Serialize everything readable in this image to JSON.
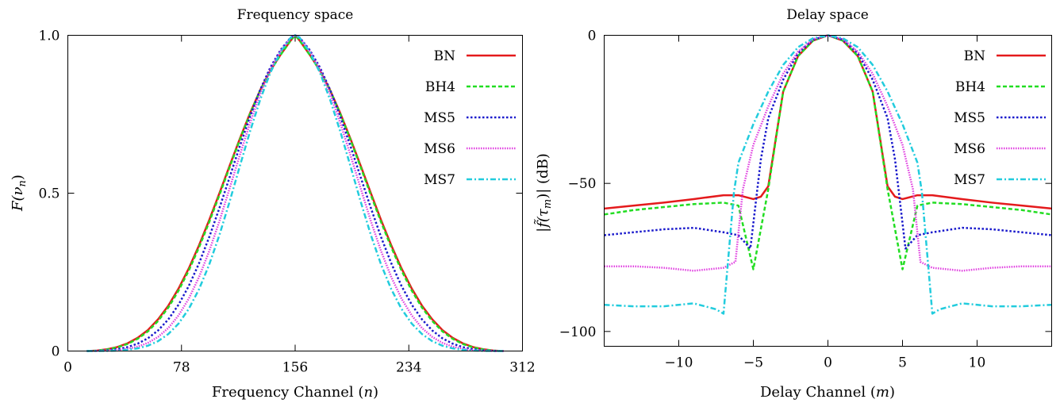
{
  "chart_data": [
    {
      "type": "line",
      "title": "Frequency space",
      "xlabel": "Frequency Channel (",
      "xlabel_var": "n",
      "xlabel_close": ")",
      "ylabel": "F(",
      "ylabel_var": "ν",
      "ylabel_sub": "n",
      "ylabel_close": ")",
      "xlim": [
        0,
        312
      ],
      "ylim": [
        0,
        1
      ],
      "xticks": [
        0,
        78,
        156,
        234,
        312
      ],
      "xtick_labels": [
        "0",
        "78",
        "156",
        "234",
        "312"
      ],
      "yticks": [
        0,
        0.5,
        1
      ],
      "ytick_labels": [
        "0",
        "0.5",
        "1.0"
      ],
      "legend_position": "top-right",
      "grid": false,
      "x": [
        13,
        20,
        27,
        34,
        41,
        48,
        55,
        62,
        69,
        76,
        83,
        90,
        97,
        104,
        111,
        118,
        125,
        132,
        139,
        146,
        153,
        156,
        159,
        166,
        173,
        180,
        187,
        194,
        201,
        208,
        215,
        222,
        229,
        236,
        243,
        250,
        257,
        264,
        271,
        278,
        285,
        292,
        299
      ],
      "series": [
        {
          "name": "BN",
          "color": "#e41a1c",
          "dash": "",
          "values": [
            0.0,
            0.0015,
            0.0057,
            0.0128,
            0.0245,
            0.042,
            0.0667,
            0.1008,
            0.144,
            0.198,
            0.2617,
            0.3346,
            0.4145,
            0.4994,
            0.5864,
            0.672,
            0.753,
            0.8263,
            0.8888,
            0.9385,
            0.9839,
            1.0,
            0.9839,
            0.9385,
            0.8888,
            0.8263,
            0.753,
            0.672,
            0.5864,
            0.4994,
            0.4145,
            0.3346,
            0.2617,
            0.198,
            0.144,
            0.1008,
            0.0667,
            0.042,
            0.0245,
            0.0128,
            0.0057,
            0.0015,
            0.0
          ]
        },
        {
          "name": "BH4",
          "color": "#22dd22",
          "dash": "5,3",
          "values": [
            0.0,
            0.0012,
            0.005,
            0.0115,
            0.0225,
            0.039,
            0.0625,
            0.0955,
            0.138,
            0.1915,
            0.255,
            0.328,
            0.4082,
            0.4938,
            0.5818,
            0.6685,
            0.7505,
            0.8245,
            0.8876,
            0.938,
            0.9837,
            1.0,
            0.9837,
            0.938,
            0.8876,
            0.8245,
            0.7505,
            0.6685,
            0.5818,
            0.4938,
            0.4082,
            0.328,
            0.255,
            0.1915,
            0.138,
            0.0955,
            0.0625,
            0.039,
            0.0225,
            0.0115,
            0.005,
            0.0012,
            0.0
          ]
        },
        {
          "name": "MS5",
          "color": "#1a1acc",
          "dash": "2.5,2.5",
          "values": [
            0.0,
            0.0005,
            0.0023,
            0.006,
            0.0125,
            0.0235,
            0.0405,
            0.0655,
            0.1005,
            0.147,
            0.206,
            0.2775,
            0.3605,
            0.4525,
            0.55,
            0.6485,
            0.7425,
            0.8275,
            0.8985,
            0.9535,
            0.9935,
            1.0,
            0.9935,
            0.9535,
            0.8985,
            0.8275,
            0.7425,
            0.6485,
            0.55,
            0.4525,
            0.3605,
            0.2775,
            0.206,
            0.147,
            0.1005,
            0.0655,
            0.0405,
            0.0235,
            0.0125,
            0.006,
            0.0023,
            0.0005,
            0.0
          ]
        },
        {
          "name": "MS6",
          "color": "#e040e0",
          "dash": "1.5,1.5",
          "values": [
            0.0,
            0.0002,
            0.001,
            0.003,
            0.007,
            0.014,
            0.026,
            0.045,
            0.073,
            0.113,
            0.166,
            0.234,
            0.316,
            0.411,
            0.515,
            0.62,
            0.722,
            0.814,
            0.891,
            0.95,
            0.993,
            1.0,
            0.993,
            0.95,
            0.891,
            0.814,
            0.722,
            0.62,
            0.515,
            0.411,
            0.316,
            0.234,
            0.166,
            0.113,
            0.073,
            0.045,
            0.026,
            0.014,
            0.007,
            0.003,
            0.001,
            0.0002,
            0.0
          ]
        },
        {
          "name": "MS7",
          "color": "#22ccdd",
          "dash": "7,3,2,3",
          "values": [
            0.0,
            0.0001,
            0.0004,
            0.0015,
            0.004,
            0.0085,
            0.017,
            0.0315,
            0.054,
            0.087,
            0.1335,
            0.1955,
            0.2735,
            0.367,
            0.473,
            0.585,
            0.695,
            0.796,
            0.882,
            0.947,
            0.993,
            1.0,
            0.993,
            0.947,
            0.882,
            0.796,
            0.695,
            0.585,
            0.473,
            0.367,
            0.2735,
            0.1955,
            0.1335,
            0.087,
            0.054,
            0.0315,
            0.017,
            0.0085,
            0.004,
            0.0015,
            0.0004,
            0.0001,
            0.0
          ]
        }
      ]
    },
    {
      "type": "line",
      "title": "Delay space",
      "xlabel": "Delay Channel (",
      "xlabel_var": "m",
      "xlabel_close": ")",
      "ylabel": "|f̃(τ",
      "ylabel_sub": "m",
      "ylabel_close": ")| (dB)",
      "xlim": [
        -15,
        15
      ],
      "ylim": [
        -105,
        0
      ],
      "xticks": [
        -10,
        -5,
        0,
        5,
        10
      ],
      "xtick_labels": [
        "−10",
        "−5",
        "0",
        "5",
        "10"
      ],
      "yticks": [
        0,
        -50,
        -100
      ],
      "ytick_labels": [
        "0",
        "−50",
        "−100"
      ],
      "legend_position": "top-right",
      "grid": false,
      "series": [
        {
          "name": "BN",
          "color": "#e41a1c",
          "dash": "",
          "points": [
            [
              -15,
              -58.5
            ],
            [
              -13,
              -57.5
            ],
            [
              -11,
              -56.5
            ],
            [
              -9,
              -55.3
            ],
            [
              -7,
              -54.0
            ],
            [
              -6,
              -54.0
            ],
            [
              -5,
              -55.3
            ],
            [
              -4.5,
              -54.5
            ],
            [
              -4,
              -51
            ],
            [
              -3,
              -19
            ],
            [
              -2,
              -7
            ],
            [
              -1,
              -1.8
            ],
            [
              0,
              0
            ],
            [
              1,
              -1.8
            ],
            [
              2,
              -7
            ],
            [
              3,
              -19
            ],
            [
              4,
              -51
            ],
            [
              4.5,
              -54.5
            ],
            [
              5,
              -55.3
            ],
            [
              6,
              -54.0
            ],
            [
              7,
              -54.0
            ],
            [
              9,
              -55.3
            ],
            [
              11,
              -56.5
            ],
            [
              13,
              -57.5
            ],
            [
              15,
              -58.5
            ]
          ]
        },
        {
          "name": "BH4",
          "color": "#22dd22",
          "dash": "5,3",
          "points": [
            [
              -15,
              -60.5
            ],
            [
              -13,
              -59.0
            ],
            [
              -11,
              -58.0
            ],
            [
              -9,
              -57.0
            ],
            [
              -7,
              -56.5
            ],
            [
              -6,
              -57.5
            ],
            [
              -5,
              -79
            ],
            [
              -4,
              -52
            ],
            [
              -3,
              -19
            ],
            [
              -2,
              -7
            ],
            [
              -1,
              -1.8
            ],
            [
              0,
              0
            ],
            [
              1,
              -1.8
            ],
            [
              2,
              -7
            ],
            [
              3,
              -19
            ],
            [
              4,
              -52
            ],
            [
              5,
              -79
            ],
            [
              6,
              -57.5
            ],
            [
              7,
              -56.5
            ],
            [
              9,
              -57.0
            ],
            [
              11,
              -58.0
            ],
            [
              13,
              -59.0
            ],
            [
              15,
              -60.5
            ]
          ]
        },
        {
          "name": "MS5",
          "color": "#1a1acc",
          "dash": "2.5,2.5",
          "points": [
            [
              -15,
              -67.5
            ],
            [
              -13,
              -66.5
            ],
            [
              -11,
              -65.5
            ],
            [
              -9,
              -65.0
            ],
            [
              -7,
              -66.5
            ],
            [
              -6,
              -67.5
            ],
            [
              -5.2,
              -72
            ],
            [
              -4.5,
              -42
            ],
            [
              -4,
              -28
            ],
            [
              -3,
              -15
            ],
            [
              -2,
              -6
            ],
            [
              -1,
              -1.5
            ],
            [
              0,
              0
            ],
            [
              1,
              -1.5
            ],
            [
              2,
              -6
            ],
            [
              3,
              -15
            ],
            [
              4,
              -28
            ],
            [
              4.5,
              -42
            ],
            [
              5.2,
              -72
            ],
            [
              6,
              -67.5
            ],
            [
              7,
              -66.5
            ],
            [
              9,
              -65.0
            ],
            [
              11,
              -65.5
            ],
            [
              13,
              -66.5
            ],
            [
              15,
              -67.5
            ]
          ]
        },
        {
          "name": "MS6",
          "color": "#e040e0",
          "dash": "1.5,1.5",
          "points": [
            [
              -15,
              -78
            ],
            [
              -13,
              -78
            ],
            [
              -11,
              -78.5
            ],
            [
              -9,
              -79.5
            ],
            [
              -7,
              -78.5
            ],
            [
              -6.2,
              -76.5
            ],
            [
              -5.7,
              -52
            ],
            [
              -5,
              -37
            ],
            [
              -4,
              -24
            ],
            [
              -3,
              -13
            ],
            [
              -2,
              -5.5
            ],
            [
              -1,
              -1.3
            ],
            [
              0,
              0
            ],
            [
              1,
              -1.3
            ],
            [
              2,
              -5.5
            ],
            [
              3,
              -13
            ],
            [
              4,
              -24
            ],
            [
              5,
              -37
            ],
            [
              5.7,
              -52
            ],
            [
              6.2,
              -76.5
            ],
            [
              7,
              -78.5
            ],
            [
              9,
              -79.5
            ],
            [
              11,
              -78.5
            ],
            [
              13,
              -78
            ],
            [
              15,
              -78
            ]
          ]
        },
        {
          "name": "MS7",
          "color": "#22ccdd",
          "dash": "7,3,2,3",
          "points": [
            [
              -15,
              -91
            ],
            [
              -13,
              -91.5
            ],
            [
              -11,
              -91.5
            ],
            [
              -9,
              -90.5
            ],
            [
              -7.5,
              -92.5
            ],
            [
              -7,
              -94
            ],
            [
              -6.3,
              -53
            ],
            [
              -6,
              -43
            ],
            [
              -5,
              -30
            ],
            [
              -4,
              -19
            ],
            [
              -3,
              -10
            ],
            [
              -2,
              -4
            ],
            [
              -1,
              -1
            ],
            [
              0,
              0
            ],
            [
              1,
              -1
            ],
            [
              2,
              -4
            ],
            [
              3,
              -10
            ],
            [
              4,
              -19
            ],
            [
              5,
              -30
            ],
            [
              6,
              -43
            ],
            [
              6.3,
              -53
            ],
            [
              7,
              -94
            ],
            [
              7.5,
              -92.5
            ],
            [
              9,
              -90.5
            ],
            [
              11,
              -91.5
            ],
            [
              13,
              -91.5
            ],
            [
              15,
              -91
            ]
          ]
        }
      ]
    }
  ]
}
